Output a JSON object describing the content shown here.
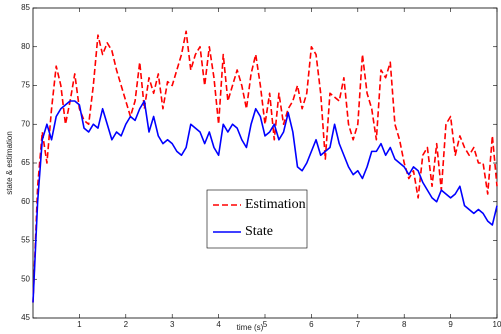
{
  "chart_data": {
    "type": "line",
    "xlabel": "time (s)",
    "ylabel": "state & estimation",
    "xlim": [
      0,
      10
    ],
    "ylim": [
      45,
      85
    ],
    "xticks": [
      1,
      2,
      3,
      4,
      5,
      6,
      7,
      8,
      9,
      10
    ],
    "yticks": [
      45,
      50,
      55,
      60,
      65,
      70,
      75,
      80,
      85
    ],
    "grid": false,
    "legend": "center",
    "x": [
      0,
      0.1,
      0.2,
      0.3,
      0.4,
      0.5,
      0.6,
      0.7,
      0.8,
      0.9,
      1,
      1.1,
      1.2,
      1.3,
      1.4,
      1.5,
      1.6,
      1.7,
      1.8,
      1.9,
      2,
      2.1,
      2.2,
      2.3,
      2.4,
      2.5,
      2.6,
      2.7,
      2.8,
      2.9,
      3,
      3.1,
      3.2,
      3.3,
      3.4,
      3.5,
      3.6,
      3.7,
      3.8,
      3.9,
      4,
      4.1,
      4.2,
      4.3,
      4.4,
      4.5,
      4.6,
      4.7,
      4.8,
      4.9,
      5,
      5.1,
      5.2,
      5.3,
      5.4,
      5.5,
      5.6,
      5.7,
      5.8,
      5.9,
      6,
      6.1,
      6.2,
      6.3,
      6.4,
      6.5,
      6.6,
      6.7,
      6.8,
      6.9,
      7,
      7.1,
      7.2,
      7.3,
      7.4,
      7.5,
      7.6,
      7.7,
      7.8,
      7.9,
      8,
      8.1,
      8.2,
      8.3,
      8.4,
      8.5,
      8.6,
      8.7,
      8.8,
      8.9,
      9,
      9.1,
      9.2,
      9.3,
      9.4,
      9.5,
      9.6,
      9.7,
      9.8,
      9.9,
      10
    ],
    "series": [
      {
        "name": "Estimation",
        "color": "#ff0000",
        "dash": true,
        "values": [
          47,
          62,
          69,
          65,
          72,
          77.5,
          75,
          70,
          73,
          76.5,
          72,
          70.5,
          70,
          75,
          81.5,
          79,
          80.5,
          79.5,
          77,
          75,
          73,
          71,
          73,
          78,
          72,
          76,
          74,
          76.5,
          72,
          75.5,
          75,
          77,
          79,
          82,
          77,
          79,
          80,
          75,
          80,
          76,
          70,
          79,
          73,
          75,
          77,
          75,
          72,
          76.5,
          79,
          75,
          70,
          74,
          68,
          74,
          70,
          72,
          73,
          75,
          72,
          74,
          80,
          79,
          74,
          65.5,
          74,
          73.5,
          73,
          76,
          70,
          68,
          70,
          79,
          74,
          72,
          68,
          77,
          76,
          78,
          70,
          68,
          65,
          63,
          64,
          60.5,
          66,
          67,
          62,
          67.5,
          61.5,
          70,
          71,
          66,
          68.5,
          67,
          66,
          67,
          65,
          65,
          61,
          68.5,
          62
        ]
      },
      {
        "name": "State",
        "color": "#0000ff",
        "dash": false,
        "values": [
          47,
          60,
          68,
          70,
          68,
          71,
          72,
          72.5,
          73,
          73,
          72.5,
          69.5,
          69,
          70,
          69.5,
          72,
          70,
          68,
          69,
          68.5,
          70,
          71,
          70.5,
          72,
          73,
          69,
          71,
          68.5,
          67.5,
          68,
          67.5,
          66.5,
          66,
          67,
          70,
          69.5,
          69,
          67.5,
          69,
          67,
          66,
          70,
          69,
          70,
          69.5,
          68,
          67,
          70,
          72,
          71,
          68.5,
          69,
          70,
          68,
          69,
          71.5,
          69,
          64.5,
          64,
          65,
          66.5,
          68,
          66,
          66.5,
          67,
          70,
          67.5,
          66,
          64.5,
          63.5,
          64,
          63,
          64.5,
          66.5,
          66.5,
          67.5,
          66,
          67,
          65.5,
          65,
          64.5,
          63.5,
          64.5,
          64,
          62.5,
          61.5,
          60.5,
          60,
          61.5,
          61,
          60.5,
          61,
          62,
          59.5,
          59,
          58.5,
          59,
          58.5,
          57.5,
          57,
          59.5
        ]
      }
    ]
  }
}
